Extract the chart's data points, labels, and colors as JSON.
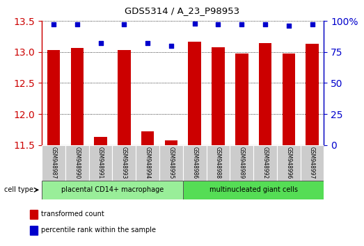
{
  "title": "GDS5314 / A_23_P98953",
  "samples": [
    "GSM948987",
    "GSM948990",
    "GSM948991",
    "GSM948993",
    "GSM948994",
    "GSM948995",
    "GSM948986",
    "GSM948988",
    "GSM948989",
    "GSM948992",
    "GSM948996",
    "GSM948997"
  ],
  "transformed_count": [
    13.03,
    13.07,
    11.63,
    13.03,
    11.72,
    11.58,
    13.17,
    13.08,
    12.97,
    13.14,
    12.97,
    13.13
  ],
  "percentile_rank": [
    97,
    97,
    82,
    97,
    82,
    80,
    98,
    97,
    97,
    97,
    96,
    97
  ],
  "group1_label": "placental CD14+ macrophage",
  "group2_label": "multinucleated giant cells",
  "group1_count": 6,
  "group2_count": 6,
  "cell_type_label": "cell type",
  "ylim_left": [
    11.5,
    13.5
  ],
  "yticks_left": [
    11.5,
    12.0,
    12.5,
    13.0,
    13.5
  ],
  "ylim_right": [
    0,
    100
  ],
  "yticks_right": [
    0,
    25,
    50,
    75,
    100
  ],
  "bar_color": "#cc0000",
  "dot_color": "#0000cc",
  "legend_label_bar": "transformed count",
  "legend_label_dot": "percentile rank within the sample",
  "bg_plot": "#ffffff",
  "bg_sample": "#cccccc",
  "bg_group1": "#99ee99",
  "bg_group2": "#55dd55",
  "left_tick_color": "#cc0000",
  "right_tick_color": "#0000cc"
}
